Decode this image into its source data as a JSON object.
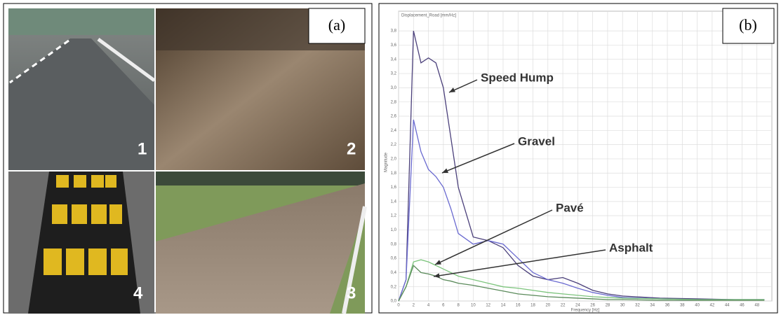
{
  "panel_a": {
    "label": "(a)",
    "photos": [
      "1",
      "2",
      "3",
      "4"
    ]
  },
  "panel_b": {
    "label": "(b)"
  },
  "chart_data": {
    "type": "line",
    "title": "Displacement_Road [mm/Hz]",
    "x_label": "Frequency [Hz]",
    "y_label": "Magnitude",
    "x": [
      0,
      1,
      2,
      3,
      4,
      5,
      6,
      7,
      8,
      10,
      12,
      14,
      16,
      18,
      20,
      22,
      24,
      26,
      28,
      30,
      35,
      40,
      45,
      49
    ],
    "series": [
      {
        "name": "Speed Hump",
        "color": "#4a3f7a",
        "values": [
          0,
          0.3,
          3.8,
          3.35,
          3.42,
          3.35,
          3.0,
          2.3,
          1.6,
          0.9,
          0.85,
          0.75,
          0.5,
          0.35,
          0.3,
          0.33,
          0.25,
          0.15,
          0.1,
          0.07,
          0.04,
          0.03,
          0.02,
          0.02
        ]
      },
      {
        "name": "Gravel",
        "color": "#6a6ad0",
        "values": [
          0,
          0.3,
          2.55,
          2.1,
          1.85,
          1.75,
          1.6,
          1.3,
          0.95,
          0.8,
          0.85,
          0.8,
          0.6,
          0.4,
          0.3,
          0.25,
          0.18,
          0.12,
          0.08,
          0.05,
          0.03,
          0.02,
          0.02,
          0.02
        ]
      },
      {
        "name": "Pavé",
        "color": "#7cc47c",
        "values": [
          0,
          0.2,
          0.55,
          0.58,
          0.55,
          0.5,
          0.45,
          0.4,
          0.35,
          0.3,
          0.25,
          0.2,
          0.18,
          0.15,
          0.12,
          0.1,
          0.08,
          0.06,
          0.05,
          0.04,
          0.03,
          0.02,
          0.02,
          0.02
        ]
      },
      {
        "name": "Asphalt",
        "color": "#5a8a5a",
        "values": [
          0,
          0.2,
          0.5,
          0.4,
          0.38,
          0.35,
          0.3,
          0.28,
          0.25,
          0.22,
          0.18,
          0.14,
          0.1,
          0.08,
          0.06,
          0.05,
          0.04,
          0.03,
          0.02,
          0.02,
          0.01,
          0.01,
          0.01,
          0.01
        ]
      }
    ],
    "xlim": [
      0,
      50
    ],
    "ylim": [
      0,
      3.9
    ],
    "xticks": [
      0,
      2,
      4,
      6,
      8,
      10,
      12,
      14,
      16,
      18,
      20,
      22,
      24,
      26,
      28,
      30,
      32,
      34,
      36,
      38,
      40,
      42,
      44,
      46,
      48
    ],
    "yticks": [
      {
        "value": 0,
        "label": "0,0"
      },
      {
        "value": 0.2,
        "label": "0,2"
      },
      {
        "value": 0.4,
        "label": "0,4"
      },
      {
        "value": 0.6,
        "label": "0,6"
      },
      {
        "value": 0.8,
        "label": "0,8"
      },
      {
        "value": 1.0,
        "label": "1,0"
      },
      {
        "value": 1.2,
        "label": "1,2"
      },
      {
        "value": 1.4,
        "label": "1,4"
      },
      {
        "value": 1.6,
        "label": "1,6"
      },
      {
        "value": 1.8,
        "label": "1,8"
      },
      {
        "value": 2.0,
        "label": "2,0"
      },
      {
        "value": 2.2,
        "label": "2,2"
      },
      {
        "value": 2.4,
        "label": "2,4"
      },
      {
        "value": 2.6,
        "label": "2,6"
      },
      {
        "value": 2.8,
        "label": "2,8"
      },
      {
        "value": 3.0,
        "label": "3,0"
      },
      {
        "value": 3.2,
        "label": "3,2"
      },
      {
        "value": 3.4,
        "label": "3,4"
      },
      {
        "value": 3.6,
        "label": "3,6"
      },
      {
        "value": 3.8,
        "label": "3,8"
      }
    ],
    "grid": true
  }
}
